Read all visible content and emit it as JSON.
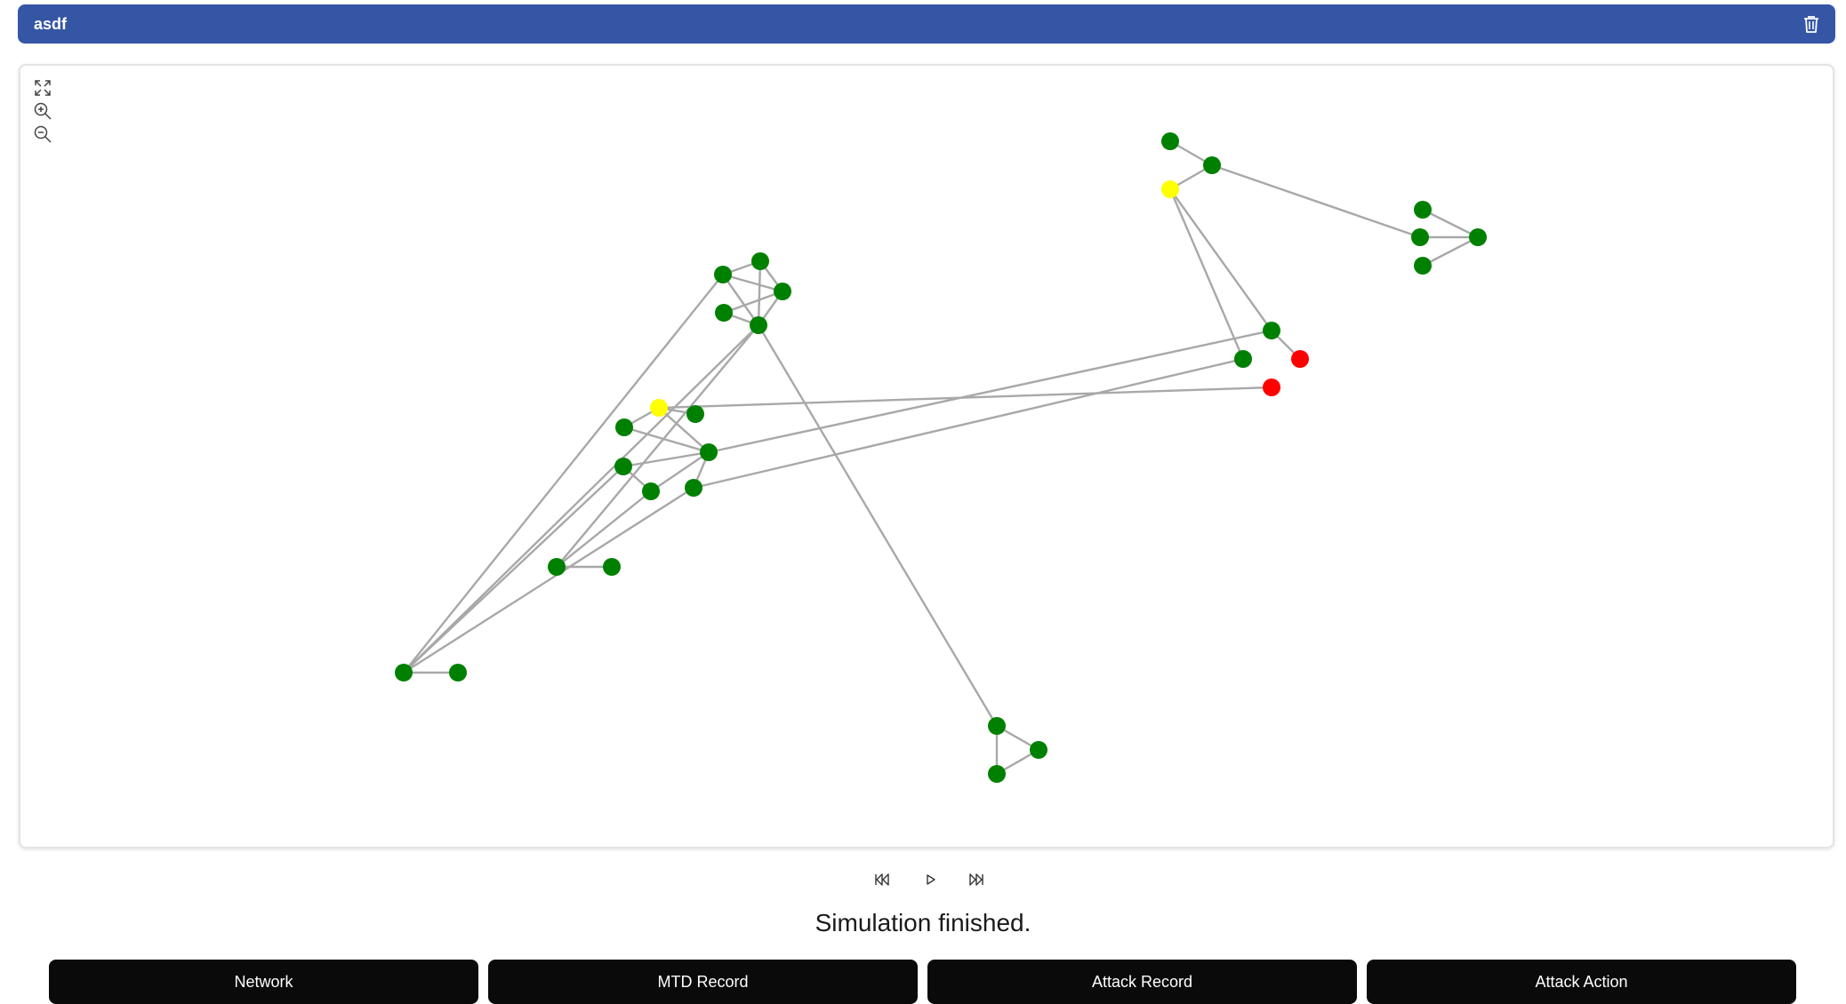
{
  "header": {
    "title": "asdf",
    "delete_icon": "trash-icon"
  },
  "graph": {
    "controls": [
      "fullscreen-icon",
      "zoom-in-icon",
      "zoom-out-icon"
    ],
    "colors": {
      "normal": "#008000",
      "warning": "#ffff00",
      "compromised": "#ff0000",
      "edge": "#a8a8a8"
    }
  },
  "playback": {
    "icons": [
      "skip-back-icon",
      "play-icon",
      "skip-forward-icon"
    ]
  },
  "status": "Simulation finished.",
  "tabs": [
    {
      "label": "Network"
    },
    {
      "label": "MTD Record"
    },
    {
      "label": "Attack Record"
    },
    {
      "label": "Attack Action"
    }
  ]
}
